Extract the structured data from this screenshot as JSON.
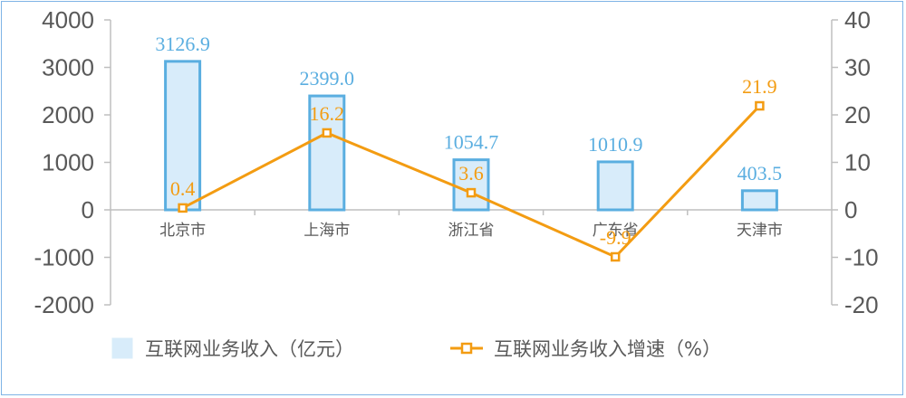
{
  "chart_data": {
    "type": "bar",
    "categories": [
      "北京市",
      "上海市",
      "浙江省",
      "广东省",
      "天津市"
    ],
    "series": [
      {
        "name": "互联网业务收入（亿元）",
        "type": "bar",
        "axis": "left",
        "values": [
          3126.9,
          2399.0,
          1054.7,
          1010.9,
          403.5
        ],
        "labels": [
          "3126.9",
          "2399.0",
          "1054.7",
          "1010.9",
          "403.5"
        ],
        "color": "#5aaee0",
        "fill": "#d8ecfa"
      },
      {
        "name": "互联网业务收入增速（%）",
        "type": "line",
        "axis": "right",
        "values": [
          0.4,
          16.2,
          3.6,
          -9.9,
          21.9
        ],
        "labels": [
          "0.4",
          "16.2",
          "3.6",
          "-9.9",
          "21.9"
        ],
        "color": "#f39c12"
      }
    ],
    "y_left": {
      "range": [
        -2000,
        4000
      ],
      "ticks": [
        "4000",
        "3000",
        "2000",
        "1000",
        "0",
        "-1000",
        "-2000"
      ]
    },
    "y_right": {
      "range": [
        -20,
        40
      ],
      "ticks": [
        "40",
        "30",
        "20",
        "10",
        "0",
        "-10",
        "-20"
      ]
    },
    "grid": false,
    "legend": "bottom"
  }
}
